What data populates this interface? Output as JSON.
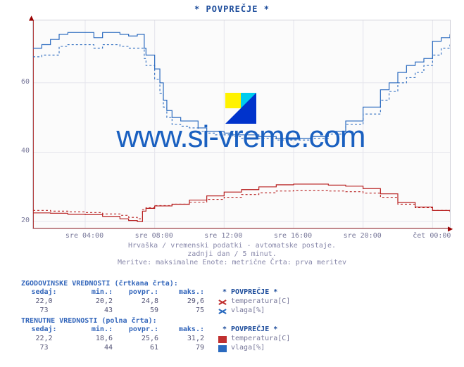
{
  "title": "* POVPREČJE *",
  "source_label": "www.si-vreme.com",
  "watermark": "www.si-vreme.com",
  "subtitle": {
    "line1": "Hrvaška / vremenski podatki - avtomatske postaje.",
    "line2": "zadnji dan / 5 minut.",
    "line3": "Meritve: maksimalne  Enote: metrične  Črta: prva meritev"
  },
  "axes": {
    "ymin": 18,
    "ymax": 78,
    "yticks": [
      20,
      40,
      60
    ],
    "xmin": 0,
    "xmax": 24,
    "xticks": [
      {
        "v": 3,
        "label": "sre 04:00"
      },
      {
        "v": 7,
        "label": "sre 08:00"
      },
      {
        "v": 11,
        "label": "sre 12:00"
      },
      {
        "v": 15,
        "label": "sre 16:00"
      },
      {
        "v": 19,
        "label": "sre 20:00"
      },
      {
        "v": 23,
        "label": "čet 00:00"
      }
    ],
    "grid_color": "#e5e5ec",
    "axis_color": "#990000",
    "background": "#fbfbfb"
  },
  "series": {
    "temp_solid": {
      "color": "#b82020",
      "width": 1.2,
      "dash": "",
      "points": [
        [
          0,
          22.5
        ],
        [
          1,
          22.4
        ],
        [
          2,
          22.1
        ],
        [
          3,
          22.0
        ],
        [
          4,
          21.5
        ],
        [
          5,
          20.8
        ],
        [
          5.5,
          20.3
        ],
        [
          6,
          20.0
        ],
        [
          6.2,
          20.0
        ],
        [
          6.3,
          23.0
        ],
        [
          6.5,
          23.8
        ],
        [
          7,
          24.5
        ],
        [
          8,
          25.0
        ],
        [
          9,
          26.2
        ],
        [
          10,
          27.4
        ],
        [
          11,
          28.5
        ],
        [
          12,
          29.2
        ],
        [
          13,
          30.0
        ],
        [
          14,
          30.6
        ],
        [
          15,
          30.8
        ],
        [
          16,
          30.8
        ],
        [
          17,
          30.5
        ],
        [
          18,
          30.2
        ],
        [
          19,
          29.5
        ],
        [
          20,
          28.0
        ],
        [
          21,
          25.5
        ],
        [
          22,
          24.2
        ],
        [
          23,
          23.2
        ],
        [
          24,
          23.0
        ]
      ]
    },
    "temp_dashed": {
      "color": "#b82020",
      "width": 1.1,
      "dash": "3,3",
      "points": [
        [
          0,
          23.2
        ],
        [
          1,
          23.0
        ],
        [
          2,
          22.8
        ],
        [
          3,
          22.6
        ],
        [
          4,
          22.2
        ],
        [
          5,
          21.8
        ],
        [
          5.5,
          21.2
        ],
        [
          6,
          20.8
        ],
        [
          6.2,
          20.8
        ],
        [
          6.3,
          23.5
        ],
        [
          6.5,
          24.0
        ],
        [
          7,
          24.6
        ],
        [
          8,
          25.0
        ],
        [
          9,
          25.6
        ],
        [
          10,
          26.4
        ],
        [
          11,
          27.0
        ],
        [
          12,
          27.8
        ],
        [
          13,
          28.3
        ],
        [
          14,
          28.8
        ],
        [
          15,
          29.0
        ],
        [
          16,
          29.0
        ],
        [
          17,
          28.8
        ],
        [
          18,
          28.6
        ],
        [
          19,
          28.2
        ],
        [
          20,
          27.0
        ],
        [
          21,
          25.0
        ],
        [
          22,
          24.0
        ],
        [
          23,
          23.2
        ],
        [
          24,
          22.8
        ]
      ]
    },
    "hum_solid": {
      "color": "#2a6abf",
      "width": 1.2,
      "dash": "",
      "points": [
        [
          0,
          70
        ],
        [
          0.5,
          71
        ],
        [
          1,
          72.5
        ],
        [
          1.5,
          74
        ],
        [
          2,
          74.5
        ],
        [
          3,
          74.5
        ],
        [
          3.5,
          73
        ],
        [
          4,
          74.5
        ],
        [
          5,
          74
        ],
        [
          5.5,
          73.5
        ],
        [
          6,
          74
        ],
        [
          6.3,
          74
        ],
        [
          6.4,
          70
        ],
        [
          6.5,
          68
        ],
        [
          7,
          64
        ],
        [
          7.3,
          60
        ],
        [
          7.5,
          55
        ],
        [
          7.7,
          52
        ],
        [
          8,
          50
        ],
        [
          8.5,
          49
        ],
        [
          9,
          49
        ],
        [
          9.5,
          47
        ],
        [
          10,
          46
        ],
        [
          10.5,
          46
        ],
        [
          11,
          45.5
        ],
        [
          11.5,
          45
        ],
        [
          12,
          45
        ],
        [
          13,
          44.5
        ],
        [
          14,
          44
        ],
        [
          15,
          44
        ],
        [
          16,
          44.5
        ],
        [
          17,
          46
        ],
        [
          18,
          49
        ],
        [
          19,
          53
        ],
        [
          20,
          58
        ],
        [
          20.5,
          60
        ],
        [
          21,
          63
        ],
        [
          21.5,
          65
        ],
        [
          22,
          66
        ],
        [
          22.5,
          67
        ],
        [
          23,
          72
        ],
        [
          23.5,
          73
        ],
        [
          24,
          74
        ]
      ]
    },
    "hum_dashed": {
      "color": "#2a6abf",
      "width": 1.1,
      "dash": "3,3",
      "points": [
        [
          0,
          67.5
        ],
        [
          0.5,
          68
        ],
        [
          1,
          68
        ],
        [
          1.5,
          70.5
        ],
        [
          2,
          71
        ],
        [
          3,
          71
        ],
        [
          3.5,
          70
        ],
        [
          4,
          71
        ],
        [
          5,
          70.5
        ],
        [
          5.5,
          70
        ],
        [
          6,
          70
        ],
        [
          6.3,
          70
        ],
        [
          6.4,
          67
        ],
        [
          6.5,
          65
        ],
        [
          7,
          61
        ],
        [
          7.3,
          57
        ],
        [
          7.5,
          53
        ],
        [
          7.7,
          50
        ],
        [
          8,
          48
        ],
        [
          8.5,
          47.5
        ],
        [
          9,
          47
        ],
        [
          9.5,
          46
        ],
        [
          10,
          45.5
        ],
        [
          10.5,
          45
        ],
        [
          11,
          45
        ],
        [
          11.5,
          44.5
        ],
        [
          12,
          44
        ],
        [
          13,
          44
        ],
        [
          14,
          43.5
        ],
        [
          15,
          43.5
        ],
        [
          16,
          44
        ],
        [
          17,
          45.2
        ],
        [
          18,
          48
        ],
        [
          19,
          51
        ],
        [
          20,
          55
        ],
        [
          20.5,
          57.5
        ],
        [
          21,
          60
        ],
        [
          21.5,
          61.5
        ],
        [
          22,
          63
        ],
        [
          22.5,
          65
        ],
        [
          23,
          68
        ],
        [
          23.5,
          70
        ],
        [
          24,
          71
        ]
      ]
    }
  },
  "tables": {
    "hist_header": "ZGODOVINSKE VREDNOSTI (črtkana črta):",
    "curr_header": "TRENUTNE VREDNOSTI (polna črta):",
    "cols": {
      "sedaj": "sedaj:",
      "min": "min.:",
      "povpr": "povpr.:",
      "maks": "maks.:"
    },
    "legend_heading": "* POVPREČJE *",
    "legend_temp": "temperatura[C]",
    "legend_hum": "vlaga[%]",
    "hist": {
      "temp": {
        "sedaj": "22,0",
        "min": "20,2",
        "povpr": "24,8",
        "maks": "29,6"
      },
      "hum": {
        "sedaj": "73",
        "min": "43",
        "povpr": "59",
        "maks": "75"
      }
    },
    "curr": {
      "temp": {
        "sedaj": "22,2",
        "min": "18,6",
        "povpr": "25,6",
        "maks": "31,2"
      },
      "hum": {
        "sedaj": "73",
        "min": "44",
        "povpr": "61",
        "maks": "79"
      }
    }
  },
  "colors": {
    "temp": "#b82020",
    "hum": "#2a6abf",
    "title": "#1a4a9a"
  }
}
